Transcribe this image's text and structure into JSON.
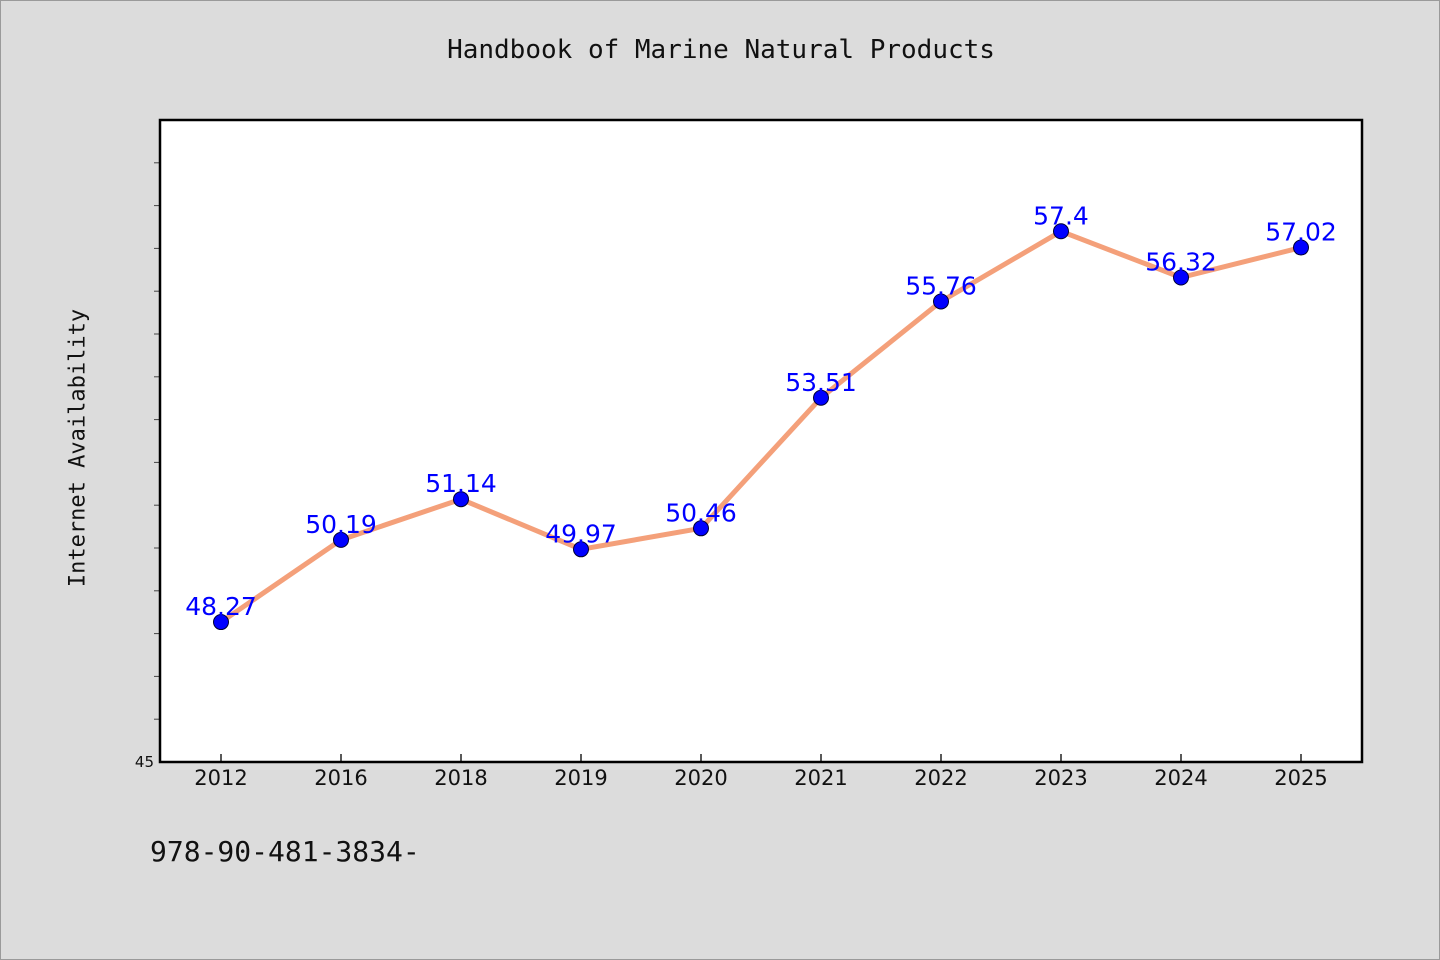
{
  "chart_data": {
    "type": "line",
    "title": "Handbook of Marine Natural Products",
    "xlabel": "",
    "ylabel": "Internet Availability",
    "categories": [
      "2012",
      "2016",
      "2018",
      "2019",
      "2020",
      "2021",
      "2022",
      "2023",
      "2024",
      "2025"
    ],
    "series": [
      {
        "values": [
          48.27,
          50.19,
          51.14,
          49.97,
          50.46,
          53.51,
          55.76,
          57.4,
          56.32,
          57.02
        ],
        "labels": [
          "48.27",
          "50.19",
          "51.14",
          "49.97",
          "50.46",
          "53.51",
          "55.76",
          "57.4",
          "56.32",
          "57.02"
        ],
        "line_color": "#f4a07a",
        "marker_color": "#0000ff"
      }
    ],
    "ylim": [
      45,
      60
    ],
    "y_tick_labels": [
      {
        "value": 45,
        "label": "45"
      }
    ],
    "grid": false,
    "legend": "none"
  },
  "footnote": "978-90-481-3834-",
  "colors": {
    "background": "#dcdcdc",
    "plot_background": "#ffffff",
    "data_label": "#0000ff"
  }
}
